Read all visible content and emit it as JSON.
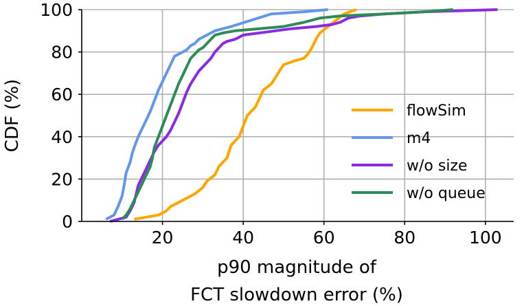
{
  "chart_data": {
    "type": "line",
    "xlabel_lines": [
      "p90 magnitude of",
      "FCT slowdown error (%)"
    ],
    "ylabel": "CDF (%)",
    "xlim": [
      0,
      107
    ],
    "ylim": [
      0,
      100
    ],
    "xticks": [
      20,
      40,
      60,
      80,
      100
    ],
    "yticks": [
      0,
      20,
      40,
      60,
      80,
      100
    ],
    "grid": true,
    "legend_position": "lower-right",
    "series": [
      {
        "name": "flowSim",
        "color": "#ffa500",
        "points": [
          [
            13,
            1
          ],
          [
            16,
            2
          ],
          [
            19,
            3
          ],
          [
            21,
            5
          ],
          [
            22,
            7
          ],
          [
            24,
            9
          ],
          [
            26,
            11
          ],
          [
            28,
            13
          ],
          [
            30,
            16
          ],
          [
            31,
            19
          ],
          [
            33,
            22
          ],
          [
            34,
            26
          ],
          [
            36,
            30
          ],
          [
            37,
            36
          ],
          [
            39,
            40
          ],
          [
            40,
            45
          ],
          [
            41,
            50
          ],
          [
            43,
            54
          ],
          [
            44,
            58
          ],
          [
            45,
            62
          ],
          [
            47,
            65
          ],
          [
            48,
            68
          ],
          [
            49,
            71
          ],
          [
            50,
            74
          ],
          [
            53,
            76
          ],
          [
            55,
            77
          ],
          [
            56,
            79
          ],
          [
            57,
            82
          ],
          [
            58,
            86
          ],
          [
            59,
            89
          ],
          [
            61,
            92
          ],
          [
            63,
            95
          ],
          [
            65,
            98
          ],
          [
            68,
            100
          ]
        ]
      },
      {
        "name": "m4",
        "color": "#6495ed",
        "points": [
          [
            6,
            1
          ],
          [
            8,
            3
          ],
          [
            9,
            7
          ],
          [
            10,
            12
          ],
          [
            10.5,
            17
          ],
          [
            11,
            23
          ],
          [
            12,
            28
          ],
          [
            12.5,
            32
          ],
          [
            13,
            35
          ],
          [
            14,
            40
          ],
          [
            15,
            44
          ],
          [
            16,
            48
          ],
          [
            17,
            52
          ],
          [
            18,
            57
          ],
          [
            19,
            62
          ],
          [
            20,
            66
          ],
          [
            21,
            70
          ],
          [
            22,
            74
          ],
          [
            23,
            78
          ],
          [
            25,
            80
          ],
          [
            26,
            81
          ],
          [
            27,
            83
          ],
          [
            28,
            84
          ],
          [
            29,
            86
          ],
          [
            31,
            88
          ],
          [
            33,
            90
          ],
          [
            37,
            92
          ],
          [
            42,
            95
          ],
          [
            47,
            98
          ],
          [
            55,
            99
          ],
          [
            61,
            100
          ]
        ]
      },
      {
        "name": "w/o size",
        "color": "#8a2be2",
        "points": [
          [
            7,
            0
          ],
          [
            9,
            1
          ],
          [
            11,
            2
          ],
          [
            12,
            5
          ],
          [
            13,
            9
          ],
          [
            13.5,
            13
          ],
          [
            14,
            17
          ],
          [
            15,
            21
          ],
          [
            16,
            25
          ],
          [
            17,
            29
          ],
          [
            18,
            33
          ],
          [
            19,
            36
          ],
          [
            20,
            38
          ],
          [
            21,
            40
          ],
          [
            22,
            43
          ],
          [
            23,
            47
          ],
          [
            24,
            51
          ],
          [
            25,
            56
          ],
          [
            26,
            61
          ],
          [
            27,
            65
          ],
          [
            28,
            68
          ],
          [
            29,
            71
          ],
          [
            30,
            73
          ],
          [
            31,
            75
          ],
          [
            32,
            77
          ],
          [
            33,
            80
          ],
          [
            34,
            82
          ],
          [
            35,
            84
          ],
          [
            36,
            85
          ],
          [
            38,
            86
          ],
          [
            40,
            88
          ],
          [
            44,
            89
          ],
          [
            48,
            90
          ],
          [
            52,
            91
          ],
          [
            58,
            92
          ],
          [
            62,
            93
          ],
          [
            64,
            94
          ],
          [
            66,
            96
          ],
          [
            69,
            97
          ],
          [
            75,
            98
          ],
          [
            85,
            99
          ],
          [
            103,
            100
          ]
        ]
      },
      {
        "name": "w/o queue",
        "color": "#2e8b57",
        "points": [
          [
            10,
            1
          ],
          [
            11,
            3
          ],
          [
            12,
            6
          ],
          [
            13,
            10
          ],
          [
            14,
            14
          ],
          [
            15,
            18
          ],
          [
            16,
            22
          ],
          [
            17,
            26
          ],
          [
            17.5,
            30
          ],
          [
            18,
            35
          ],
          [
            19,
            40
          ],
          [
            20,
            45
          ],
          [
            21,
            50
          ],
          [
            22,
            55
          ],
          [
            23,
            60
          ],
          [
            24,
            65
          ],
          [
            25,
            69
          ],
          [
            26,
            73
          ],
          [
            27,
            77
          ],
          [
            28,
            79
          ],
          [
            29,
            81
          ],
          [
            30,
            82
          ],
          [
            31,
            84
          ],
          [
            32,
            86
          ],
          [
            33,
            88
          ],
          [
            35,
            89
          ],
          [
            38,
            90
          ],
          [
            44,
            91
          ],
          [
            50,
            92
          ],
          [
            55,
            94
          ],
          [
            59,
            96
          ],
          [
            64,
            97
          ],
          [
            75,
            98
          ],
          [
            85,
            99
          ],
          [
            92,
            100
          ]
        ]
      }
    ]
  }
}
